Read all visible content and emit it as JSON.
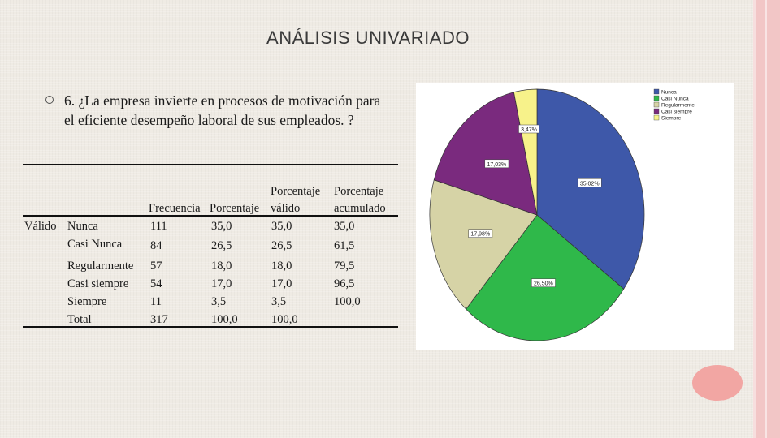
{
  "title": "ANÁLISIS UNIVARIADO",
  "question": "6. ¿La empresa invierte en procesos de motivación para el eficiente desempeño laboral de sus empleados. ?",
  "table": {
    "headers": {
      "frecuencia": "Frecuencia",
      "porcentaje": "Porcentaje",
      "valido_top": "Porcentaje",
      "valido_bottom": "válido",
      "acum_top": "Porcentaje",
      "acum_bottom": "acumulado"
    },
    "group_label": "Válido",
    "rows": [
      {
        "label": "Nunca",
        "frecuencia": "111",
        "porcentaje": "35,0",
        "valido": "35,0",
        "acumulado": "35,0"
      },
      {
        "label": "Casi Nunca",
        "frecuencia": "84",
        "porcentaje": "26,5",
        "valido": "26,5",
        "acumulado": "61,5"
      },
      {
        "label": "Regularmente",
        "frecuencia": "57",
        "porcentaje": "18,0",
        "valido": "18,0",
        "acumulado": "79,5"
      },
      {
        "label": "Casi siempre",
        "frecuencia": "54",
        "porcentaje": "17,0",
        "valido": "17,0",
        "acumulado": "96,5"
      },
      {
        "label": "Siempre",
        "frecuencia": "11",
        "porcentaje": "3,5",
        "valido": "3,5",
        "acumulado": "100,0"
      },
      {
        "label": "Total",
        "frecuencia": "317",
        "porcentaje": "100,0",
        "valido": "100,0",
        "acumulado": ""
      }
    ]
  },
  "chart_data": {
    "type": "pie",
    "categories": [
      "Nunca",
      "Casi Nunca",
      "Regularmente",
      "Casi siempre",
      "Siempre"
    ],
    "values": [
      35.02,
      26.5,
      17.98,
      17.03,
      3.47
    ],
    "labels": [
      "35,02%",
      "26,50%",
      "17,98%",
      "17,03%",
      "3,47%"
    ],
    "colors": [
      "#3e58a9",
      "#2fb84a",
      "#d6d3a6",
      "#7a2a7e",
      "#f7f28a"
    ],
    "legend_placement": "top-right"
  }
}
